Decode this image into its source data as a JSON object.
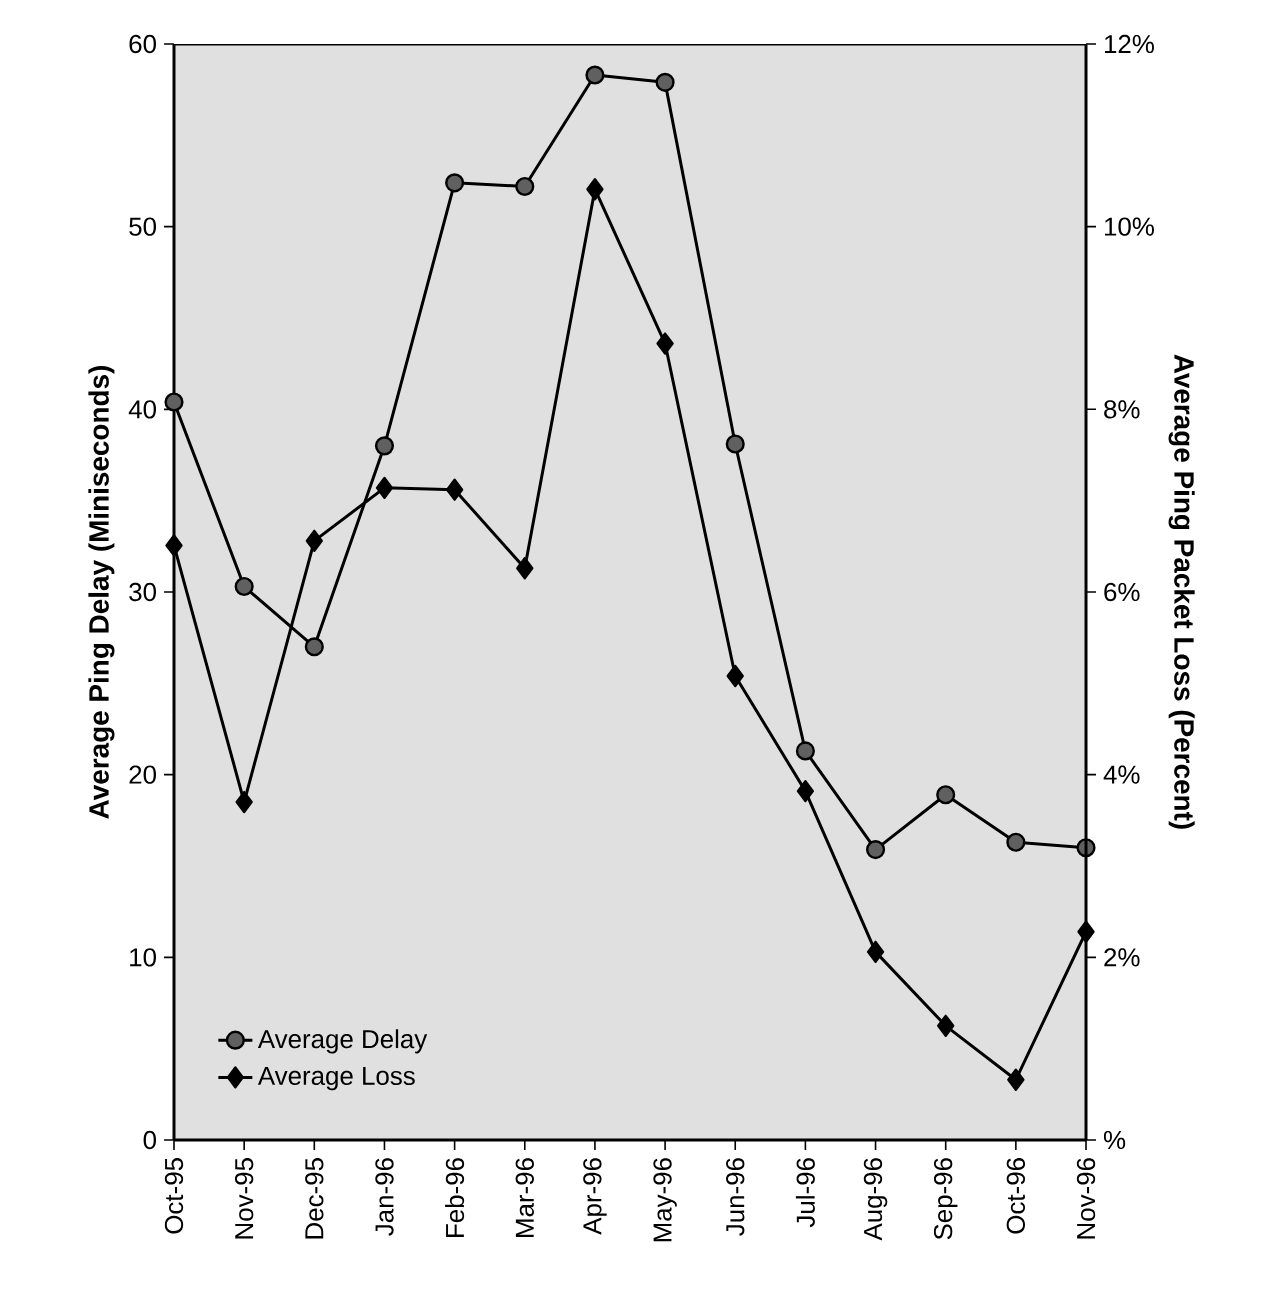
{
  "chart_data": {
    "type": "line",
    "categories": [
      "Oct-95",
      "Nov-95",
      "Dec-95",
      "Jan-96",
      "Feb-96",
      "Mar-96",
      "Apr-96",
      "May-96",
      "Jun-96",
      "Jul-96",
      "Aug-96",
      "Sep-96",
      "Oct-96",
      "Nov-96"
    ],
    "ylabel": "Average Ping Delay (Miniseconds)",
    "y2label": "Average Ping Packet Loss (Percent)",
    "ylim": [
      0,
      60
    ],
    "yticks": [
      0,
      10,
      20,
      30,
      40,
      50,
      60
    ],
    "y2lim": [
      0,
      12
    ],
    "y2ticks": [
      {
        "value": 0,
        "label": "%"
      },
      {
        "value": 2,
        "label": "2%"
      },
      {
        "value": 4,
        "label": "4%"
      },
      {
        "value": 6,
        "label": "6%"
      },
      {
        "value": 8,
        "label": "8%"
      },
      {
        "value": 10,
        "label": "10%"
      },
      {
        "value": 12,
        "label": "12%"
      }
    ],
    "series": [
      {
        "name": "Average Delay",
        "color": "#606060",
        "marker": "circle",
        "values": [
          40.4,
          30.3,
          27.0,
          38.0,
          52.4,
          52.2,
          58.3,
          57.9,
          38.1,
          21.3,
          15.9,
          18.9,
          16.3,
          16.0
        ]
      },
      {
        "name": "Average Loss",
        "color": "#000000",
        "marker": "diamond",
        "axis": "y2",
        "values": [
          6.51,
          3.7,
          6.56,
          7.14,
          7.12,
          6.26,
          10.41,
          8.72,
          5.08,
          3.82,
          2.06,
          1.25,
          0.66,
          2.28
        ]
      }
    ],
    "legend": "bottom left",
    "grid": false
  }
}
